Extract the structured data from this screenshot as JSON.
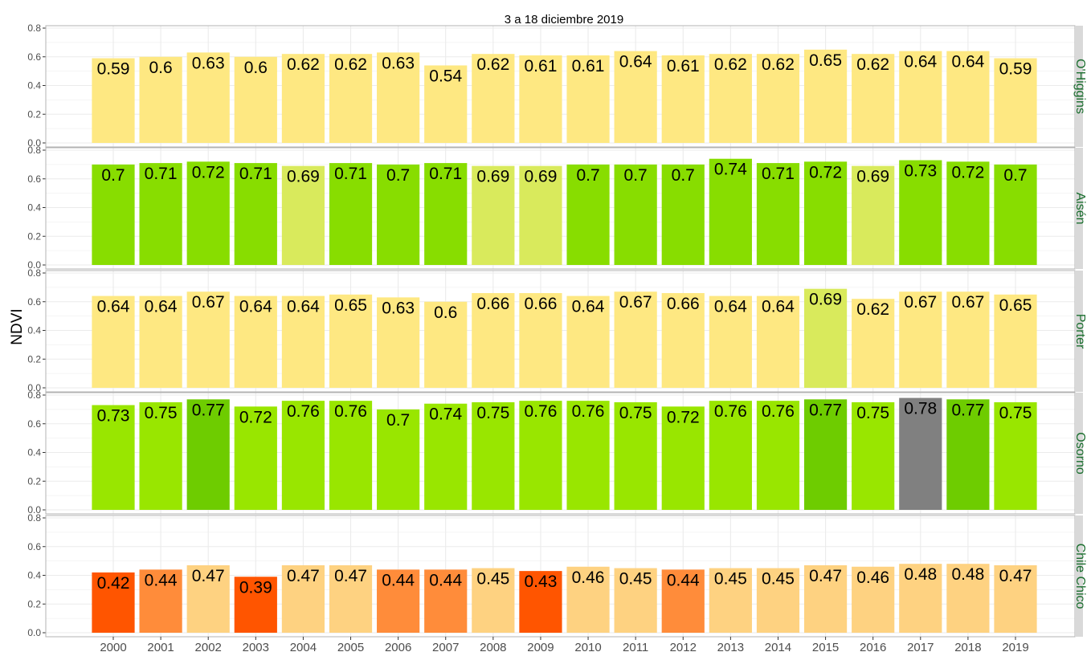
{
  "chart_data": {
    "type": "bar",
    "title": "3 a 18 diciembre 2019",
    "ylabel": "NDVI",
    "xlabel": "",
    "ylim": [
      0,
      0.8
    ],
    "yticks": [
      "0.0",
      "0.2",
      "0.4",
      "0.6",
      "0.8"
    ],
    "categories": [
      "2000",
      "2001",
      "2002",
      "2003",
      "2004",
      "2005",
      "2006",
      "2007",
      "2008",
      "2009",
      "2010",
      "2011",
      "2012",
      "2013",
      "2014",
      "2015",
      "2016",
      "2017",
      "2018",
      "2019"
    ],
    "grid": true,
    "facets": [
      {
        "strip_label": "O'Higgins",
        "values": [
          0.59,
          0.6,
          0.63,
          0.6,
          0.62,
          0.62,
          0.63,
          0.54,
          0.62,
          0.61,
          0.61,
          0.64,
          0.61,
          0.62,
          0.62,
          0.65,
          0.62,
          0.64,
          0.64,
          0.59
        ],
        "labels": [
          "0.59",
          "0.6",
          "0.63",
          "0.6",
          "0.62",
          "0.62",
          "0.63",
          "0.54",
          "0.62",
          "0.61",
          "0.61",
          "0.64",
          "0.61",
          "0.62",
          "0.62",
          "0.65",
          "0.62",
          "0.64",
          "0.64",
          "0.59"
        ],
        "colors": [
          "#fee882",
          "#fee882",
          "#fee882",
          "#fee882",
          "#fee882",
          "#fee882",
          "#fee882",
          "#fee882",
          "#fee882",
          "#fee882",
          "#fee882",
          "#fee882",
          "#fee882",
          "#fee882",
          "#fee882",
          "#fee882",
          "#fee882",
          "#fee882",
          "#fee882",
          "#fee882"
        ]
      },
      {
        "strip_label": "Aisén",
        "values": [
          0.7,
          0.71,
          0.72,
          0.71,
          0.69,
          0.71,
          0.7,
          0.71,
          0.69,
          0.69,
          0.7,
          0.7,
          0.7,
          0.74,
          0.71,
          0.72,
          0.69,
          0.73,
          0.72,
          0.7
        ],
        "labels": [
          "0.7",
          "0.71",
          "0.72",
          "0.71",
          "0.69",
          "0.71",
          "0.7",
          "0.71",
          "0.69",
          "0.69",
          "0.7",
          "0.7",
          "0.7",
          "0.74",
          "0.71",
          "0.72",
          "0.69",
          "0.73",
          "0.72",
          "0.7"
        ],
        "colors": [
          "#88dd00",
          "#88dd00",
          "#88dd00",
          "#88dd00",
          "#d9ea5c",
          "#88dd00",
          "#88dd00",
          "#88dd00",
          "#d9ea5c",
          "#d9ea5c",
          "#88dd00",
          "#88dd00",
          "#88dd00",
          "#88dd00",
          "#88dd00",
          "#88dd00",
          "#d9ea5c",
          "#88dd00",
          "#88dd00",
          "#88dd00"
        ]
      },
      {
        "strip_label": "Porter",
        "values": [
          0.64,
          0.64,
          0.67,
          0.64,
          0.64,
          0.65,
          0.63,
          0.6,
          0.66,
          0.66,
          0.64,
          0.67,
          0.66,
          0.64,
          0.64,
          0.69,
          0.62,
          0.67,
          0.67,
          0.65
        ],
        "labels": [
          "0.64",
          "0.64",
          "0.67",
          "0.64",
          "0.64",
          "0.65",
          "0.63",
          "0.6",
          "0.66",
          "0.66",
          "0.64",
          "0.67",
          "0.66",
          "0.64",
          "0.64",
          "0.69",
          "0.62",
          "0.67",
          "0.67",
          "0.65"
        ],
        "colors": [
          "#fee882",
          "#fee882",
          "#fee882",
          "#fee882",
          "#fee882",
          "#fee882",
          "#fee882",
          "#fee882",
          "#fee882",
          "#fee882",
          "#fee882",
          "#fee882",
          "#fee882",
          "#fee882",
          "#fee882",
          "#d9ea5c",
          "#fee882",
          "#fee882",
          "#fee882",
          "#fee882"
        ]
      },
      {
        "strip_label": "Osorno",
        "values": [
          0.73,
          0.75,
          0.77,
          0.72,
          0.76,
          0.76,
          0.7,
          0.74,
          0.75,
          0.76,
          0.76,
          0.75,
          0.72,
          0.76,
          0.76,
          0.77,
          0.75,
          0.78,
          0.77,
          0.75
        ],
        "labels": [
          "0.73",
          "0.75",
          "0.77",
          "0.72",
          "0.76",
          "0.76",
          "0.7",
          "0.74",
          "0.75",
          "0.76",
          "0.76",
          "0.75",
          "0.72",
          "0.76",
          "0.76",
          "0.77",
          "0.75",
          "0.78",
          "0.77",
          "0.75"
        ],
        "colors": [
          "#99e600",
          "#99e600",
          "#6ecc00",
          "#99e600",
          "#99e600",
          "#99e600",
          "#99e600",
          "#99e600",
          "#99e600",
          "#99e600",
          "#99e600",
          "#99e600",
          "#99e600",
          "#99e600",
          "#99e600",
          "#6ecc00",
          "#99e600",
          "#808080",
          "#6ecc00",
          "#99e600"
        ]
      },
      {
        "strip_label": "Chile Chico",
        "values": [
          0.42,
          0.44,
          0.47,
          0.39,
          0.47,
          0.47,
          0.44,
          0.44,
          0.45,
          0.43,
          0.46,
          0.45,
          0.44,
          0.45,
          0.45,
          0.47,
          0.46,
          0.48,
          0.48,
          0.47
        ],
        "labels": [
          "0.42",
          "0.44",
          "0.47",
          "0.39",
          "0.47",
          "0.47",
          "0.44",
          "0.44",
          "0.45",
          "0.43",
          "0.46",
          "0.45",
          "0.44",
          "0.45",
          "0.45",
          "0.47",
          "0.46",
          "0.48",
          "0.48",
          "0.47"
        ],
        "colors": [
          "#ff5500",
          "#ff8c3a",
          "#fed281",
          "#ff5500",
          "#fed281",
          "#fed281",
          "#ff8c3a",
          "#ff8c3a",
          "#fed281",
          "#ff5500",
          "#fed281",
          "#fed281",
          "#ff8c3a",
          "#fed281",
          "#fed281",
          "#fed281",
          "#fed281",
          "#fed281",
          "#fed281",
          "#fed281"
        ]
      }
    ]
  },
  "colors": {
    "strip_bg": "#d9d9d9",
    "strip_text": "#1a6e2e",
    "panel_border": "#b3b3b3",
    "grid": "#ebebeb"
  }
}
